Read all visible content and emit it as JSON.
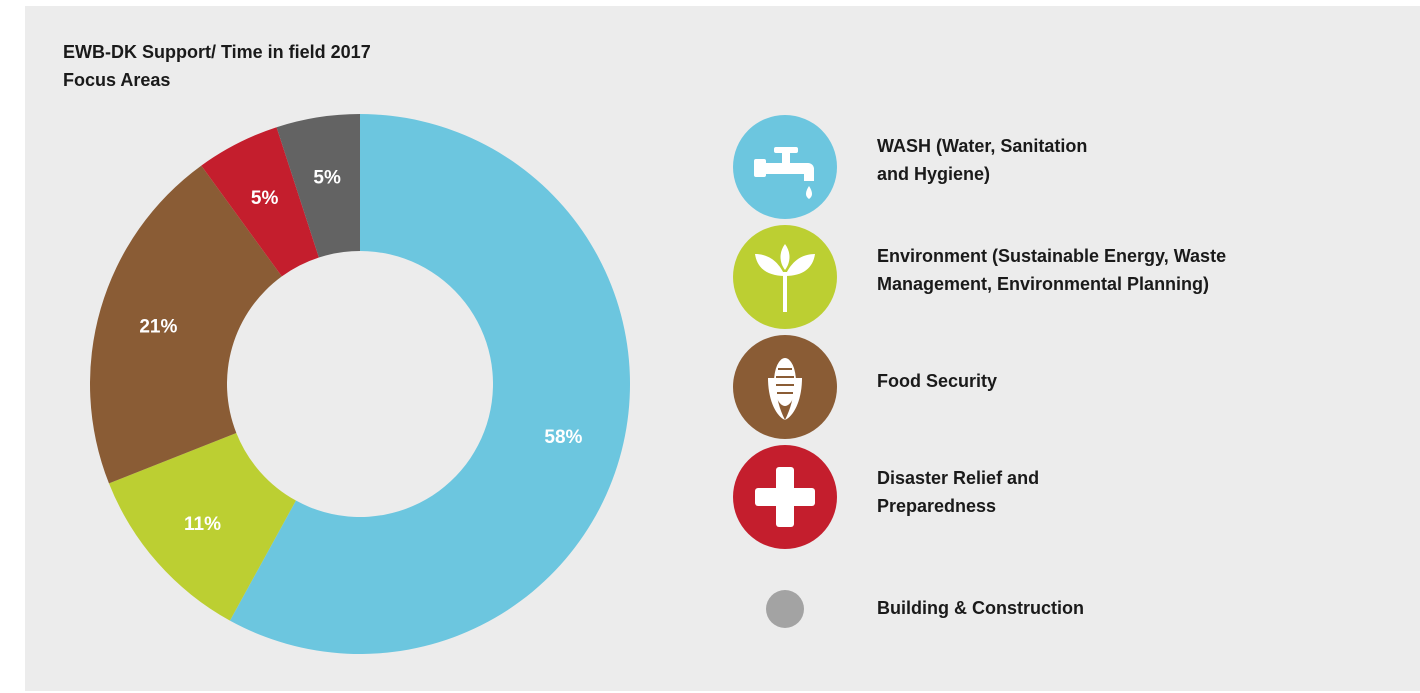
{
  "title": {
    "line1": "EWB-DK Support/ Time in field 2017",
    "line2": "Focus Areas"
  },
  "chart_data": {
    "type": "pie",
    "donut": true,
    "title": "EWB-DK Support/ Time in field 2017 Focus Areas",
    "categories": [
      "WASH (Water, Sanitation and Hygiene)",
      "Environment (Sustainable Energy, Waste Management, Environmental Planning)",
      "Food Security",
      "Disaster Relief and Preparedness",
      "Building & Construction"
    ],
    "values": [
      58,
      11,
      21,
      5,
      5
    ],
    "labels": [
      "58%",
      "11%",
      "21%",
      "5%",
      "5%"
    ],
    "colors": [
      "#6cc6df",
      "#bccf32",
      "#8a5c35",
      "#c41e2d",
      "#636363"
    ],
    "legend_placement": "right"
  },
  "legend": [
    {
      "line1": "WASH (Water, Sanitation",
      "line2": "and Hygiene)",
      "icon": "water-tap-icon",
      "color": "#6cc6df"
    },
    {
      "line1": "Environment (Sustainable Energy, Waste",
      "line2": "Management, Environmental Planning)",
      "icon": "plant-sprout-icon",
      "color": "#bccf32"
    },
    {
      "line1": "Food Security",
      "line2": "",
      "icon": "corn-icon",
      "color": "#8a5c35"
    },
    {
      "line1": "Disaster Relief and",
      "line2": "Preparedness",
      "icon": "cross-icon",
      "color": "#c41e2d"
    },
    {
      "line1": "Building & Construction",
      "line2": "",
      "icon": "circle-dot-icon",
      "color": "#a3a3a3"
    }
  ]
}
